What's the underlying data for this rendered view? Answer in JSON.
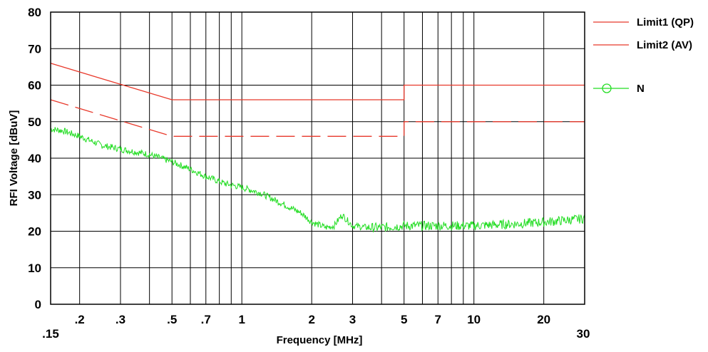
{
  "chart_data": {
    "type": "line",
    "title": "",
    "xlabel": "Frequency [MHz]",
    "ylabel": "RFI Voltage [dBuV]",
    "xscale": "log",
    "xlim": [
      0.15,
      30
    ],
    "ylim": [
      0,
      80
    ],
    "grid": true,
    "legend_position": "right",
    "x_ticks": [
      {
        "value": 0.15,
        "label": ".15"
      },
      {
        "value": 0.2,
        "label": ".2"
      },
      {
        "value": 0.3,
        "label": ".3"
      },
      {
        "value": 0.5,
        "label": ".5"
      },
      {
        "value": 0.7,
        "label": ".7"
      },
      {
        "value": 1,
        "label": "1"
      },
      {
        "value": 2,
        "label": "2"
      },
      {
        "value": 3,
        "label": "3"
      },
      {
        "value": 5,
        "label": "5"
      },
      {
        "value": 7,
        "label": "7"
      },
      {
        "value": 10,
        "label": "10"
      },
      {
        "value": 20,
        "label": "20"
      },
      {
        "value": 30,
        "label": "30"
      }
    ],
    "x_minor_gridlines": [
      0.4,
      0.6,
      0.8,
      0.9,
      4,
      6,
      8,
      9
    ],
    "y_ticks": [
      0,
      10,
      20,
      30,
      40,
      50,
      60,
      70,
      80
    ],
    "series": [
      {
        "name": "Limit1 (QP)",
        "color": "#e8392b",
        "style": "solid",
        "marker": "none",
        "points": [
          [
            0.15,
            66
          ],
          [
            0.5,
            56
          ],
          [
            5,
            56
          ],
          [
            5,
            60
          ],
          [
            30,
            60
          ]
        ]
      },
      {
        "name": "Limit2 (AV)",
        "color": "#e8392b",
        "style": "dashed",
        "marker": "none",
        "points": [
          [
            0.15,
            56
          ],
          [
            0.5,
            46
          ],
          [
            5,
            46
          ],
          [
            5,
            50
          ],
          [
            30,
            50
          ]
        ]
      },
      {
        "name": "N",
        "color": "#22dd22",
        "style": "solid",
        "marker": "circle",
        "points": [
          [
            0.15,
            48
          ],
          [
            0.17,
            47.5
          ],
          [
            0.2,
            46
          ],
          [
            0.25,
            43.5
          ],
          [
            0.3,
            42.5
          ],
          [
            0.4,
            41
          ],
          [
            0.5,
            39
          ],
          [
            0.6,
            37
          ],
          [
            0.7,
            35
          ],
          [
            0.85,
            33
          ],
          [
            1.0,
            32
          ],
          [
            1.2,
            30.5
          ],
          [
            1.5,
            27.5
          ],
          [
            1.8,
            25
          ],
          [
            2.0,
            22.5
          ],
          [
            2.3,
            21
          ],
          [
            2.5,
            21.5
          ],
          [
            2.7,
            24.5
          ],
          [
            3.0,
            21.5
          ],
          [
            3.5,
            21
          ],
          [
            4,
            21
          ],
          [
            5,
            21.5
          ],
          [
            7,
            21.5
          ],
          [
            10,
            21.5
          ],
          [
            15,
            22
          ],
          [
            20,
            22.5
          ],
          [
            25,
            23
          ],
          [
            30,
            23.5
          ]
        ]
      }
    ]
  }
}
